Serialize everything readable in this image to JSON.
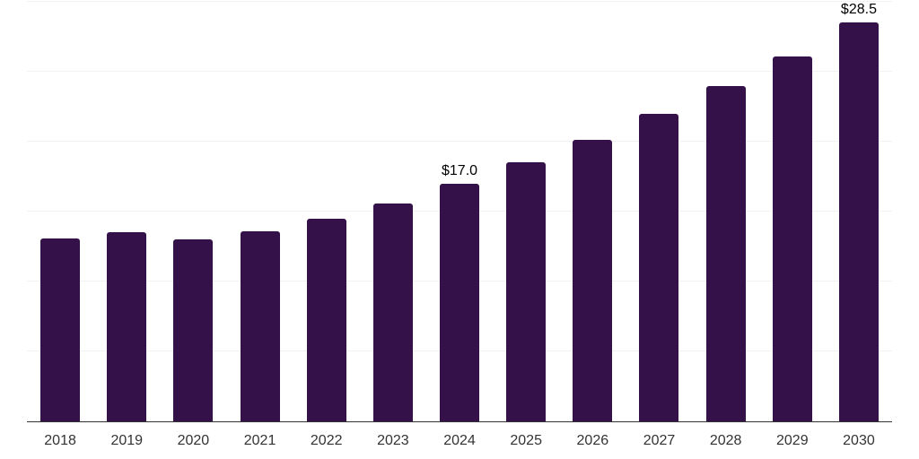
{
  "chart_data": {
    "type": "bar",
    "title": "",
    "xlabel": "",
    "ylabel": "",
    "categories": [
      "2018",
      "2019",
      "2020",
      "2021",
      "2022",
      "2023",
      "2024",
      "2025",
      "2026",
      "2027",
      "2028",
      "2029",
      "2030"
    ],
    "values": [
      13.1,
      13.5,
      13.0,
      13.6,
      14.5,
      15.6,
      17.0,
      18.5,
      20.1,
      22.0,
      24.0,
      26.1,
      28.5
    ],
    "data_labels": {
      "2024": "$17.0",
      "2030": "$28.5"
    },
    "ylim": [
      0,
      30
    ],
    "grid": {
      "show": true,
      "interval": 5,
      "color": "#f2f2f2"
    },
    "legend": "none",
    "bar_color": "#341149",
    "axis_line_color": "#333333",
    "tick_label_color": "#333333",
    "data_label_color": "#000000",
    "background": "#ffffff"
  }
}
